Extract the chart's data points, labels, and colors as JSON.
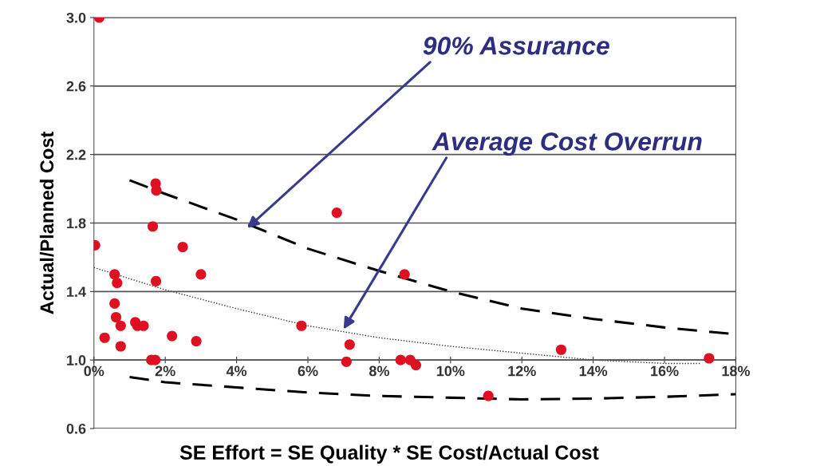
{
  "chart_data": {
    "type": "scatter",
    "xlabel": "SE Effort = SE Quality * SE Cost/Actual Cost",
    "ylabel": "Actual/Planned Cost",
    "xlim": [
      0,
      18
    ],
    "ylim": [
      0.6,
      3.0
    ],
    "xticks": [
      {
        "value": 0,
        "label": "0%"
      },
      {
        "value": 2,
        "label": "2%"
      },
      {
        "value": 4,
        "label": "4%"
      },
      {
        "value": 6,
        "label": "6%"
      },
      {
        "value": 8,
        "label": "8%"
      },
      {
        "value": 10,
        "label": "10%"
      },
      {
        "value": 12,
        "label": "12%"
      },
      {
        "value": 14,
        "label": "14%"
      },
      {
        "value": 16,
        "label": "16%"
      },
      {
        "value": 18,
        "label": "18%"
      }
    ],
    "yticks": [
      0.6,
      {
        "value": 1,
        "label": "1.0"
      },
      1.4,
      1.8,
      2.2,
      2.6,
      {
        "value": 3,
        "label": "3.0"
      }
    ],
    "grid": "y",
    "legend": false,
    "marker": "circle",
    "series": [
      {
        "color": "#dd1122",
        "x": [
          0.15,
          0.03,
          0.3,
          0.58,
          0.65,
          0.58,
          0.62,
          0.75,
          0.75,
          1.16,
          1.22,
          1.39,
          1.61,
          1.72,
          1.74,
          2.19,
          2.87,
          3.0,
          2.49,
          1.65,
          1.73,
          1.75,
          6.81,
          5.82,
          7.17,
          7.08,
          8.71,
          8.6,
          8.87,
          9.03,
          11.06,
          13.1,
          17.25
        ],
        "values": [
          3.0,
          1.67,
          1.13,
          1.5,
          1.45,
          1.33,
          1.25,
          1.2,
          1.08,
          1.22,
          1.2,
          1.2,
          1.0,
          1.0,
          1.46,
          1.14,
          1.11,
          1.5,
          1.66,
          1.78,
          2.03,
          1.99,
          1.86,
          1.2,
          1.09,
          0.99,
          1.5,
          1.0,
          1.0,
          0.97,
          0.79,
          1.06,
          1.01
        ]
      },
      {
        "type": "line",
        "color": "#000000",
        "line_style": "dashed",
        "marker": "none",
        "x": [
          1,
          2,
          4,
          6,
          8,
          10,
          12,
          14,
          16,
          18
        ],
        "values": [
          2.05,
          1.97,
          1.82,
          1.65,
          1.52,
          1.4,
          1.3,
          1.24,
          1.19,
          1.15
        ]
      },
      {
        "type": "line",
        "color": "#333333",
        "line_style": "dotted",
        "marker": "none",
        "x": [
          0,
          2,
          4,
          6,
          8,
          10,
          12,
          14,
          16,
          17
        ],
        "values": [
          1.54,
          1.41,
          1.3,
          1.2,
          1.13,
          1.08,
          1.04,
          1.0,
          0.98,
          0.98
        ]
      },
      {
        "type": "line",
        "color": "#000000",
        "line_style": "dashed",
        "marker": "none",
        "x": [
          1,
          2,
          4,
          6,
          8,
          10,
          12,
          14,
          16,
          18
        ],
        "values": [
          0.9,
          0.87,
          0.84,
          0.81,
          0.79,
          0.78,
          0.77,
          0.775,
          0.785,
          0.8
        ]
      }
    ],
    "annotations": [
      {
        "text": "90% Assurance",
        "x": 4.3,
        "y": 1.77
      },
      {
        "text": "Average Cost Overrun",
        "x": 7.0,
        "y": 1.18
      }
    ]
  }
}
